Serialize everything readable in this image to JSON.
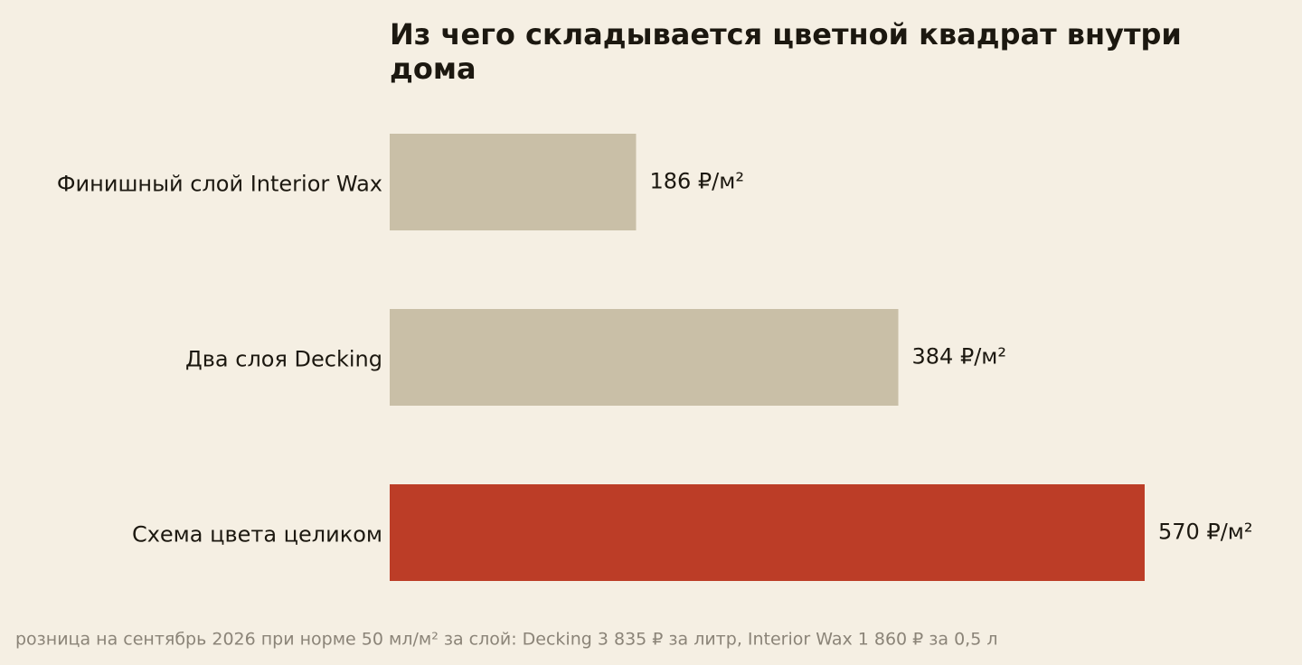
{
  "chart_data": {
    "type": "bar",
    "orientation": "horizontal",
    "title": "Из чего складывается цветной квадрат внутри дома",
    "categories": [
      "Финишный слой Interior Wax",
      "Два слоя Decking",
      "Схема цвета целиком"
    ],
    "values": [
      186,
      384,
      570
    ],
    "value_labels": [
      "186 ₽/м²",
      "384 ₽/м²",
      "570 ₽/м²"
    ],
    "colors": [
      "#c9bfa7",
      "#c9bfa7",
      "#bc3d27"
    ],
    "note": "розница на сентябрь 2026 при норме 50 мл/м² за слой: Decking 3 835 ₽ за литр, Interior Wax 1 860 ₽ за 0,5 л"
  }
}
